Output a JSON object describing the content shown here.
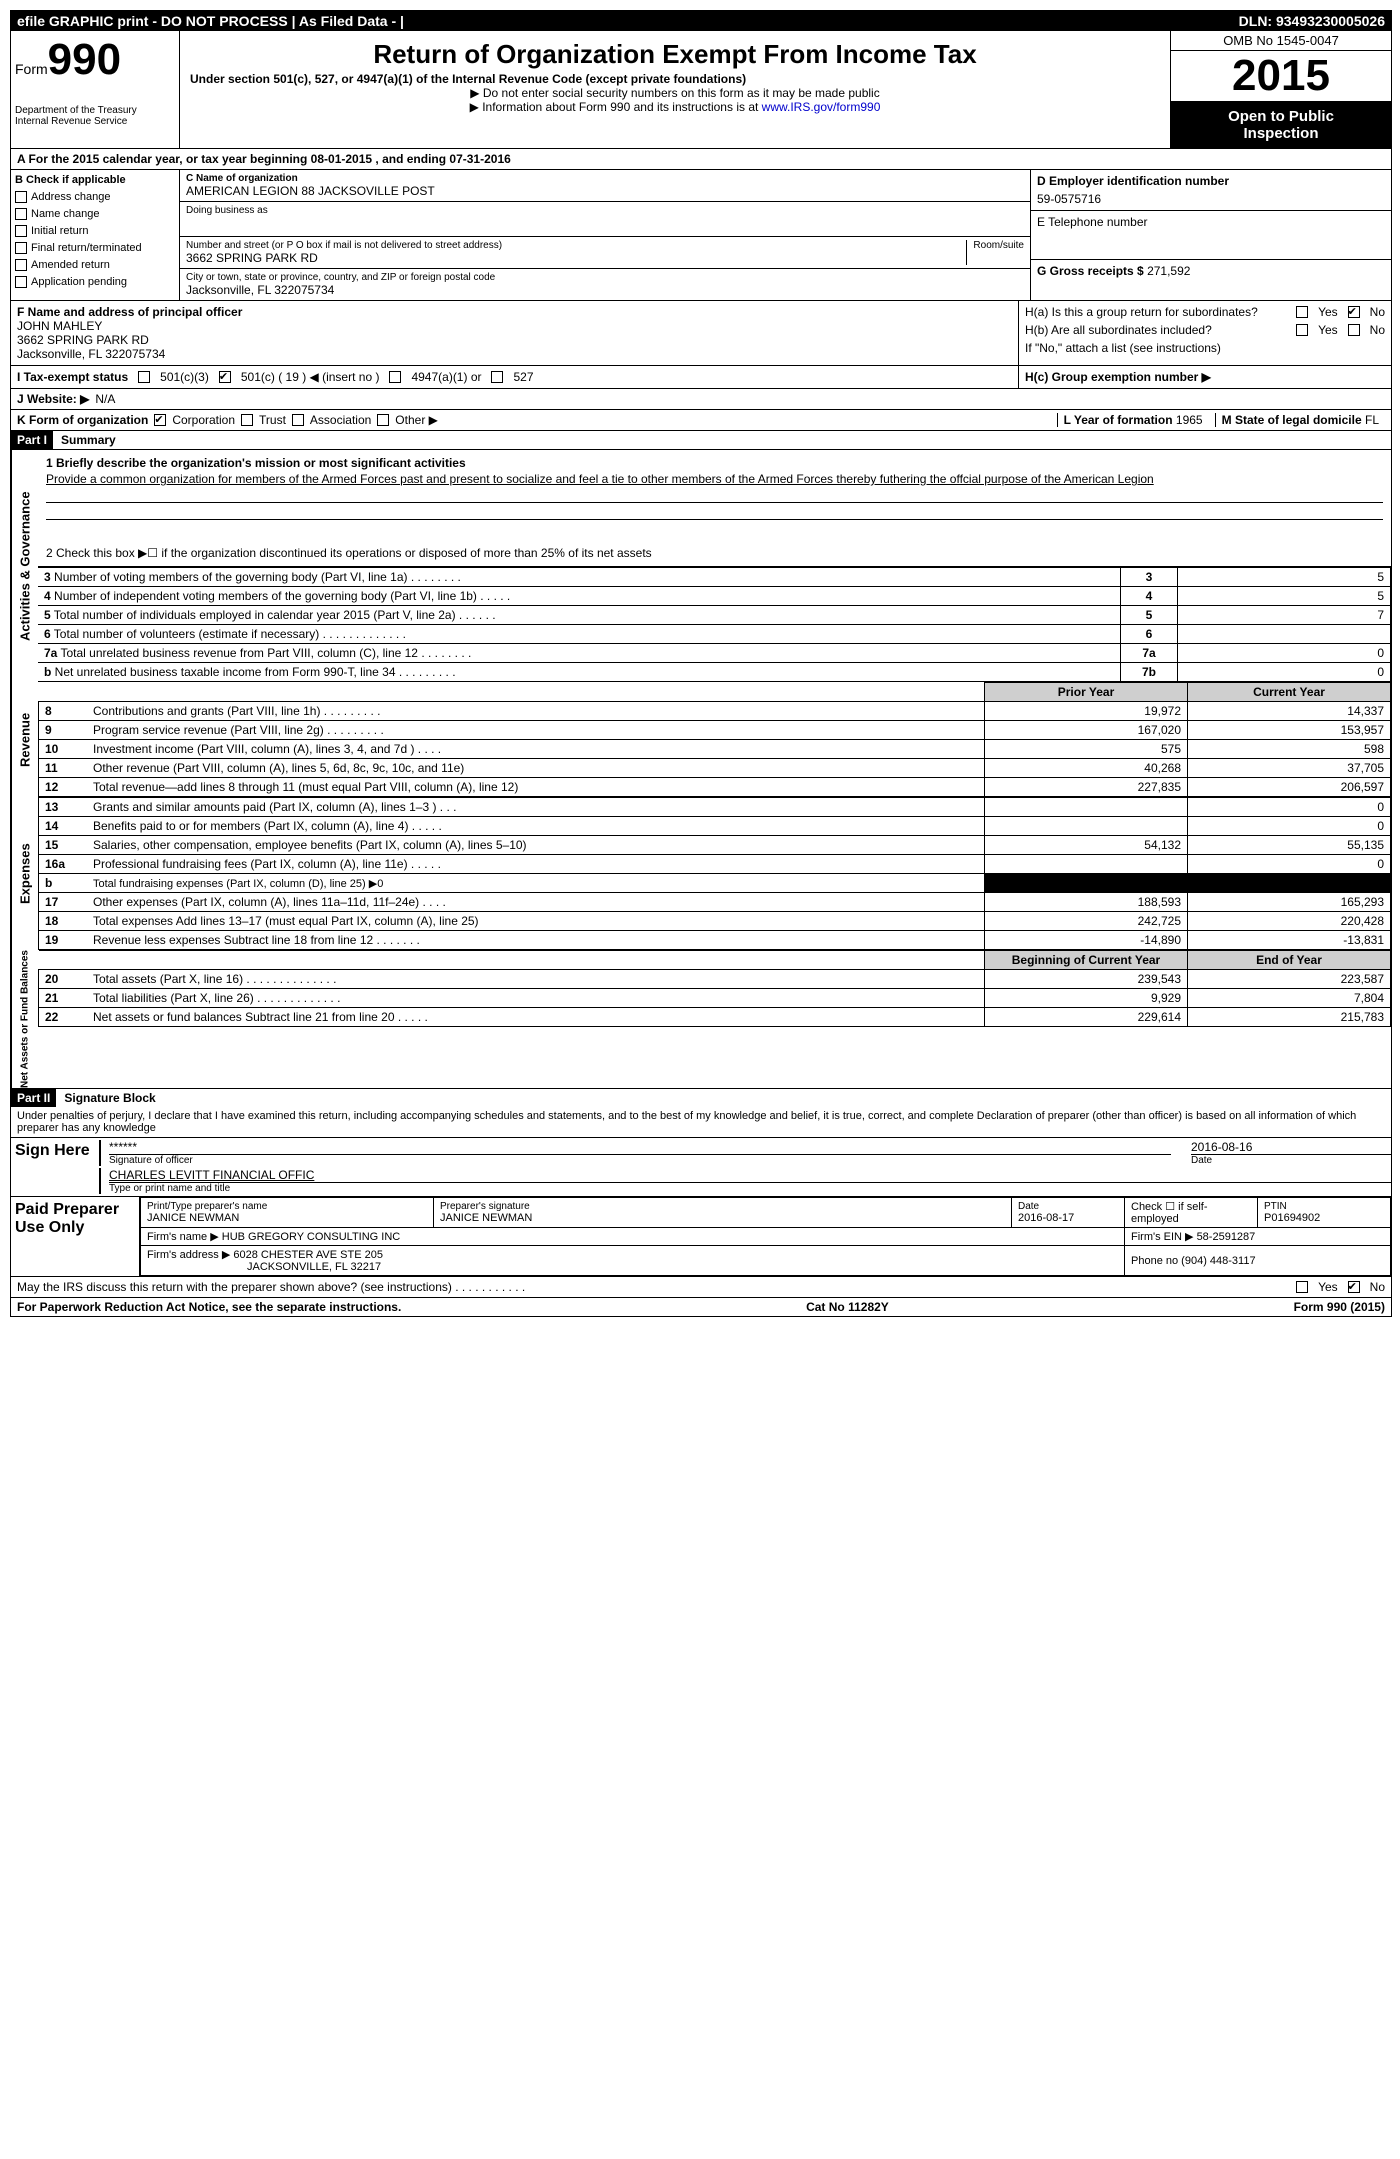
{
  "topbar": {
    "left": "efile GRAPHIC print - DO NOT PROCESS    | As Filed Data -  |",
    "right": "DLN: 93493230005026"
  },
  "header": {
    "formWord": "Form",
    "formNum": "990",
    "dept1": "Department of the Treasury",
    "dept2": "Internal Revenue Service",
    "title": "Return of Organization Exempt From Income Tax",
    "sub": "Under section 501(c), 527, or 4947(a)(1) of the Internal Revenue Code (except private foundations)",
    "note1": "▶ Do not enter social security numbers on this form as it may be made public",
    "note2_prefix": "▶ Information about Form 990 and its instructions is at ",
    "note2_link": "www.IRS.gov/form990",
    "omb": "OMB No 1545-0047",
    "year": "2015",
    "badge1": "Open to Public",
    "badge2": "Inspection"
  },
  "rowA": {
    "prefix": "A  For the 2015 calendar year, or tax year beginning ",
    "begin": "08-01-2015",
    "mid": " , and ending ",
    "end": "07-31-2016"
  },
  "checks": {
    "header": "B  Check if applicable",
    "c1": "Address change",
    "c2": "Name change",
    "c3": "Initial return",
    "c4": "Final return/terminated",
    "c5": "Amended return",
    "c6": "Application pending"
  },
  "orgBox": {
    "cLabel": "C Name of organization",
    "name": "AMERICAN LEGION 88 JACKSOVILLE POST",
    "dba": "Doing business as",
    "addrLabel": "Number and street (or P O box if mail is not delivered to street address)",
    "roomLabel": "Room/suite",
    "addr": "3662 SPRING PARK RD",
    "cityLabel": "City or town, state or province, country, and ZIP or foreign postal code",
    "city": "Jacksonville, FL  322075734"
  },
  "rightCol": {
    "dLabel": "D Employer identification number",
    "ein": "59-0575716",
    "eLabel": "E Telephone number",
    "gLabel": "G Gross receipts $ ",
    "gVal": "271,592"
  },
  "fBox": {
    "label": "F    Name and address of principal officer",
    "name": "JOHN MAHLEY",
    "addr1": "3662 SPRING PARK RD",
    "addr2": "Jacksonville, FL  322075734"
  },
  "hBox": {
    "ha": "H(a)  Is this a group return for subordinates?",
    "hb": "H(b)  Are all subordinates included?",
    "hbNote": "If \"No,\" attach a list  (see instructions)",
    "hc": "H(c)   Group exemption number ▶",
    "yes": "Yes",
    "no": "No"
  },
  "rowI": {
    "label": "I   Tax-exempt status",
    "o1": "501(c)(3)",
    "o2": "501(c) ( 19 ) ◀ (insert no )",
    "o3": "4947(a)(1) or",
    "o4": "527"
  },
  "rowJ": {
    "label": "J   Website: ▶",
    "val": "N/A"
  },
  "rowK": {
    "label": "K Form of organization",
    "o1": "Corporation",
    "o2": "Trust",
    "o3": "Association",
    "o4": "Other ▶",
    "lLabel": "L Year of formation",
    "lVal": "1965",
    "mLabel": "M State of legal domicile",
    "mVal": "FL"
  },
  "part1": {
    "tag": "Part I",
    "title": "Summary"
  },
  "mission": {
    "line1": "1 Briefly describe the organization's mission or most significant activities",
    "text": "Provide a common organization for members of the Armed Forces past and present to socialize and feel a tie to other members of the Armed Forces thereby futhering the offcial purpose of the American Legion"
  },
  "line2": "2  Check this box ▶☐ if the organization discontinued its operations or disposed of more than 25% of its net assets",
  "govRows": [
    {
      "n": "3",
      "lbl": "Number of voting members of the governing body (Part VI, line 1a)  .   .   .   .   .   .   .   .",
      "key": "3",
      "val": "5"
    },
    {
      "n": "4",
      "lbl": "Number of independent voting members of the governing body (Part VI, line 1b)  .   .   .   .   .",
      "key": "4",
      "val": "5"
    },
    {
      "n": "5",
      "lbl": "Total number of individuals employed in calendar year 2015 (Part V, line 2a)  .   .   .   .   .   .",
      "key": "5",
      "val": "7"
    },
    {
      "n": "6",
      "lbl": "Total number of volunteers (estimate if necessary)  .   .   .   .   .   .   .   .   .   .   .   .   .",
      "key": "6",
      "val": ""
    },
    {
      "n": "7a",
      "lbl": "Total unrelated business revenue from Part VIII, column (C), line 12  .   .   .   .   .   .   .   .",
      "key": "7a",
      "val": "0"
    },
    {
      "n": "b",
      "lbl": "Net unrelated business taxable income from Form 990-T, line 34  .   .   .   .   .   .   .   .   .",
      "key": "7b",
      "val": "0"
    }
  ],
  "finHeaders": {
    "prior": "Prior Year",
    "current": "Current Year"
  },
  "revenue": [
    {
      "n": "8",
      "d": "Contributions and grants (Part VIII, line 1h)  .   .   .   .   .   .   .   .   .",
      "p": "19,972",
      "c": "14,337"
    },
    {
      "n": "9",
      "d": "Program service revenue (Part VIII, line 2g)  .   .   .   .   .   .   .   .   .",
      "p": "167,020",
      "c": "153,957"
    },
    {
      "n": "10",
      "d": "Investment income (Part VIII, column (A), lines 3, 4, and 7d )  .   .   .   .",
      "p": "575",
      "c": "598"
    },
    {
      "n": "11",
      "d": "Other revenue (Part VIII, column (A), lines 5, 6d, 8c, 9c, 10c, and 11e)",
      "p": "40,268",
      "c": "37,705"
    },
    {
      "n": "12",
      "d": "Total revenue—add lines 8 through 11 (must equal Part VIII, column (A), line 12)",
      "p": "227,835",
      "c": "206,597"
    }
  ],
  "expenses": [
    {
      "n": "13",
      "d": "Grants and similar amounts paid (Part IX, column (A), lines 1–3 )  .   .   .",
      "p": "",
      "c": "0"
    },
    {
      "n": "14",
      "d": "Benefits paid to or for members (Part IX, column (A), line 4)  .   .   .   .   .",
      "p": "",
      "c": "0"
    },
    {
      "n": "15",
      "d": "Salaries, other compensation, employee benefits (Part IX, column (A), lines 5–10)",
      "p": "54,132",
      "c": "55,135"
    },
    {
      "n": "16a",
      "d": "Professional fundraising fees (Part IX, column (A), line 11e)  .   .   .   .   .",
      "p": "",
      "c": "0"
    },
    {
      "n": "b",
      "d": "Total fundraising expenses (Part IX, column (D), line 25) ▶0",
      "p": "BLACK",
      "c": "BLACK"
    },
    {
      "n": "17",
      "d": "Other expenses (Part IX, column (A), lines 11a–11d, 11f–24e)  .   .   .   .",
      "p": "188,593",
      "c": "165,293"
    },
    {
      "n": "18",
      "d": "Total expenses  Add lines 13–17 (must equal Part IX, column (A), line 25)",
      "p": "242,725",
      "c": "220,428"
    },
    {
      "n": "19",
      "d": "Revenue less expenses  Subtract line 18 from line 12  .   .   .   .   .   .   .",
      "p": "-14,890",
      "c": "-13,831"
    }
  ],
  "netHeaders": {
    "begin": "Beginning of Current Year",
    "end": "End of Year"
  },
  "netassets": [
    {
      "n": "20",
      "d": "Total assets (Part X, line 16)  .   .   .   .   .   .   .   .   .   .   .   .   .   .",
      "p": "239,543",
      "c": "223,587"
    },
    {
      "n": "21",
      "d": "Total liabilities (Part X, line 26)  .   .   .   .   .   .   .   .   .   .   .   .   .",
      "p": "9,929",
      "c": "7,804"
    },
    {
      "n": "22",
      "d": "Net assets or fund balances  Subtract line 21 from line 20  .   .   .   .   .",
      "p": "229,614",
      "c": "215,783"
    }
  ],
  "part2": {
    "tag": "Part II",
    "title": "Signature Block",
    "perjury": "Under penalties of perjury, I declare that I have examined this return, including accompanying schedules and statements, and to the best of my knowledge and belief, it is true, correct, and complete  Declaration of preparer (other than officer) is based on all information of which preparer has any knowledge"
  },
  "sign": {
    "label": "Sign Here",
    "stars": "******",
    "sigOfficer": "Signature of officer",
    "date": "2016-08-16",
    "dateLbl": "Date",
    "name": "CHARLES LEVITT  FINANCIAL OFFIC",
    "nameLbl": "Type or print name and title"
  },
  "preparer": {
    "label": "Paid Preparer Use Only",
    "h1": "Print/Type preparer's name",
    "v1": "JANICE NEWMAN",
    "h2": "Preparer's signature",
    "v2": "JANICE NEWMAN",
    "h3": "Date",
    "v3": "2016-08-17",
    "h4": "Check ☐ if self-employed",
    "h5": "PTIN",
    "v5": "P01694902",
    "firmNameLbl": "Firm's name    ▶",
    "firmName": "HUB GREGORY CONSULTING INC",
    "firmEinLbl": "Firm's EIN ▶",
    "firmEin": "58-2591287",
    "firmAddrLbl": "Firm's address ▶",
    "firmAddr1": "6028 CHESTER AVE STE 205",
    "firmAddr2": "JACKSONVILLE, FL  32217",
    "phoneLbl": "Phone no",
    "phone": "(904) 448-3117"
  },
  "discuss": {
    "text": "May the IRS discuss this return with the preparer shown above? (see instructions)  .   .   .   .   .   .   .   .   .   .   .",
    "yes": "Yes",
    "no": "No"
  },
  "foot": {
    "left": "For Paperwork Reduction Act Notice, see the separate instructions.",
    "mid": "Cat No  11282Y",
    "right": "Form 990 (2015)"
  },
  "sideLabels": {
    "gov": "Activities & Governance",
    "rev": "Revenue",
    "exp": "Expenses",
    "net": "Net Assets or Fund Balances"
  }
}
